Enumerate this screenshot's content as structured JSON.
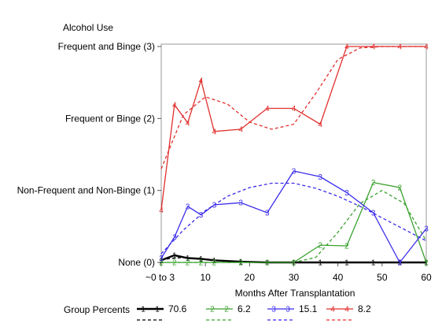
{
  "chart_data": {
    "type": "line",
    "ylabel": "Alcohol Use",
    "xlabel": "Months After Transplantation",
    "x_tick_labels": [
      {
        "x": 0,
        "label": "~0 to 3"
      },
      {
        "x": 10,
        "label": "10"
      },
      {
        "x": 20,
        "label": "20"
      },
      {
        "x": 30,
        "label": "30"
      },
      {
        "x": 40,
        "label": "40"
      },
      {
        "x": 50,
        "label": "50"
      },
      {
        "x": 60,
        "label": "60"
      }
    ],
    "y_tick_labels": [
      {
        "y": 0,
        "label": "None (0)"
      },
      {
        "y": 1,
        "label": "Non-Frequent and Non-Binge (1)"
      },
      {
        "y": 2,
        "label": "Frequent or Binge (2)"
      },
      {
        "y": 3,
        "label": "Frequent and Binge (3)"
      }
    ],
    "xlim": [
      0,
      60
    ],
    "ylim": [
      0,
      3
    ],
    "grid": false,
    "legend": {
      "title": "Group Percents",
      "placement": "bottom"
    },
    "series": [
      {
        "name": "70.6",
        "color": "#000000",
        "marker": "1",
        "x": [
          0,
          3,
          6,
          9,
          12,
          18,
          24,
          30,
          36,
          42,
          48,
          54,
          60
        ],
        "y": [
          0.03,
          0.1,
          0.06,
          0.05,
          0.03,
          0.01,
          0.0,
          0.0,
          0.0,
          0.0,
          0.0,
          0.0,
          0.0
        ],
        "fitted_x": [
          0,
          5,
          10,
          15,
          20,
          25,
          30,
          35,
          40,
          45,
          50,
          55,
          60
        ],
        "fitted_y": [
          0.04,
          0.07,
          0.04,
          0.02,
          0.01,
          0.0,
          0.0,
          0.0,
          0.0,
          0.0,
          0.0,
          0.0,
          0.0
        ]
      },
      {
        "name": "6.2",
        "color": "#3aa12e",
        "marker": "2",
        "x": [
          0,
          3,
          6,
          9,
          12,
          18,
          24,
          30,
          36,
          42,
          48,
          54,
          60
        ],
        "y": [
          0.0,
          0.0,
          0.0,
          0.0,
          0.0,
          0.0,
          0.0,
          0.0,
          0.24,
          0.23,
          1.11,
          1.04,
          0.0
        ],
        "fitted_x": [
          0,
          5,
          10,
          15,
          20,
          25,
          30,
          35,
          40,
          45,
          50,
          55,
          60
        ],
        "fitted_y": [
          0.0,
          0.0,
          0.0,
          0.0,
          0.0,
          0.0,
          0.0,
          0.07,
          0.42,
          0.82,
          1.0,
          0.82,
          0.3
        ]
      },
      {
        "name": "15.1",
        "color": "#3a2bea",
        "marker": "3",
        "x": [
          0,
          3,
          6,
          9,
          12,
          18,
          24,
          30,
          36,
          42,
          48,
          54,
          60
        ],
        "y": [
          0.06,
          0.35,
          0.78,
          0.66,
          0.8,
          0.83,
          0.69,
          1.27,
          1.19,
          0.97,
          0.69,
          0.0,
          0.47
        ],
        "fitted_x": [
          0,
          5,
          10,
          15,
          20,
          25,
          30,
          35,
          40,
          45,
          50,
          55,
          60
        ],
        "fitted_y": [
          0.12,
          0.45,
          0.72,
          0.92,
          1.04,
          1.1,
          1.1,
          1.03,
          0.92,
          0.78,
          0.62,
          0.46,
          0.3
        ]
      },
      {
        "name": "8.2",
        "color": "#e0302e",
        "marker": "4",
        "x": [
          0,
          3,
          6,
          9,
          12,
          18,
          24,
          30,
          36,
          42,
          48,
          54,
          60
        ],
        "y": [
          0.73,
          2.19,
          1.94,
          2.53,
          1.82,
          1.85,
          2.14,
          2.14,
          1.92,
          3.0,
          3.0,
          3.0,
          3.0
        ],
        "fitted_x": [
          0,
          5,
          10,
          15,
          20,
          25,
          30,
          35,
          40,
          45,
          50,
          55,
          60
        ],
        "fitted_y": [
          1.3,
          2.05,
          2.3,
          2.2,
          1.95,
          1.85,
          1.92,
          2.35,
          2.82,
          2.98,
          3.0,
          3.0,
          3.0
        ]
      }
    ]
  }
}
